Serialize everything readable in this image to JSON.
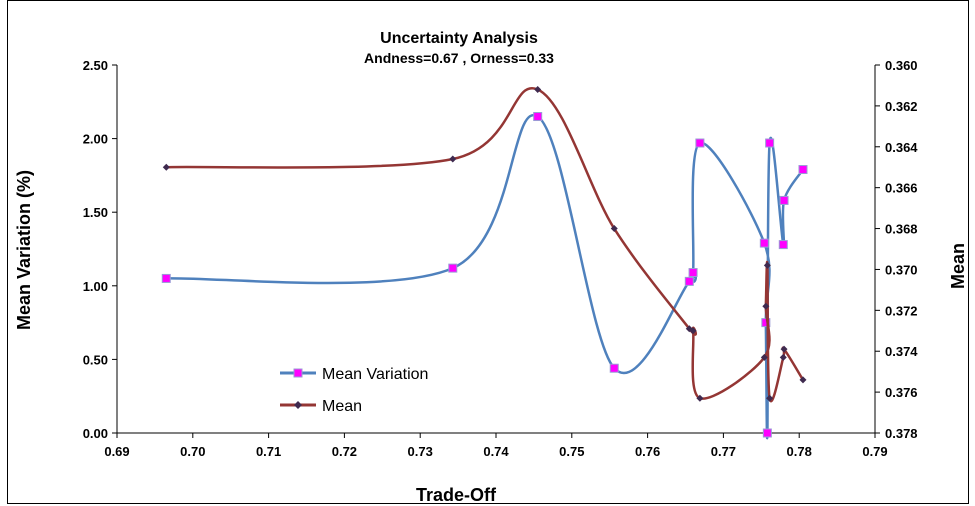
{
  "chart_data": {
    "type": "line",
    "title": "Uncertainty Analysis",
    "subtitle": "Andness=0.67 , Orness=0.33",
    "xlabel": "Trade-Off",
    "ylabel": "Mean Variation (%)",
    "y2label": "Mean",
    "xlim": [
      0.69,
      0.79
    ],
    "ylim": [
      0,
      2.5
    ],
    "y2lim": [
      0.378,
      0.36
    ],
    "y2_reversed": true,
    "x_ticks": [
      "0.69",
      "0.70",
      "0.71",
      "0.72",
      "0.73",
      "0.74",
      "0.75",
      "0.76",
      "0.77",
      "0.78",
      "0.79"
    ],
    "y_ticks": [
      "0.00",
      "0.50",
      "1.00",
      "1.50",
      "2.00",
      "2.50"
    ],
    "y2_ticks": [
      "0.360",
      "0.362",
      "0.364",
      "0.366",
      "0.368",
      "0.370",
      "0.372",
      "0.374",
      "0.376",
      "0.378"
    ],
    "grid": false,
    "legend_position": "bottom-left",
    "series": [
      {
        "name": "Mean Variation",
        "axis": "left",
        "color": "#4f81bd",
        "marker_color": "#ff00ff",
        "x": [
          0.6965,
          0.7343,
          0.7455,
          0.7556,
          0.7655,
          0.766,
          0.7669,
          0.7754,
          0.7756,
          0.7758,
          0.7761,
          0.7779,
          0.778,
          0.7805
        ],
        "y": [
          1.05,
          1.12,
          2.15,
          0.44,
          1.03,
          1.09,
          1.97,
          1.29,
          0.75,
          0.0,
          1.97,
          1.28,
          1.58,
          1.79
        ]
      },
      {
        "name": "Mean",
        "axis": "right",
        "color": "#943634",
        "marker_color": "#3f2a4f",
        "x": [
          0.6965,
          0.7343,
          0.7455,
          0.7556,
          0.7655,
          0.766,
          0.7669,
          0.7754,
          0.7756,
          0.7758,
          0.7761,
          0.7779,
          0.778,
          0.7805
        ],
        "y": [
          0.365,
          0.3646,
          0.3612,
          0.368,
          0.3729,
          0.373,
          0.3763,
          0.3743,
          0.3718,
          0.3698,
          0.3763,
          0.3743,
          0.3739,
          0.3754
        ]
      }
    ]
  }
}
